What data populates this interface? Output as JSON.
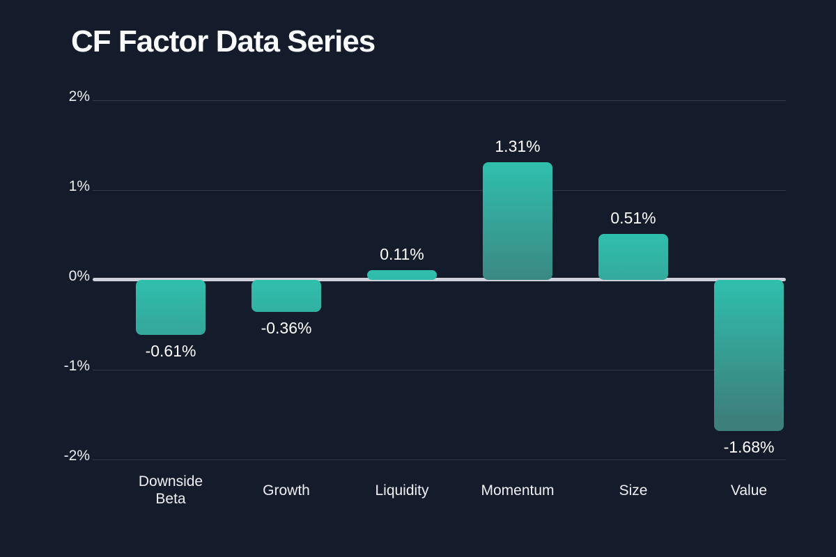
{
  "title": "CF Factor Data Series",
  "chart_data": {
    "type": "bar",
    "title": "CF Factor Data Series",
    "categories": [
      "Downside Beta",
      "Growth",
      "Liquidity",
      "Momentum",
      "Size",
      "Value"
    ],
    "values": [
      -0.61,
      -0.36,
      0.11,
      1.31,
      0.51,
      -1.68
    ],
    "value_labels": [
      "-0.61%",
      "-0.36%",
      "0.11%",
      "1.31%",
      "0.51%",
      "-1.68%"
    ],
    "xlabel": "",
    "ylabel": "",
    "ylim": [
      -2,
      2
    ],
    "y_ticks": [
      {
        "value": 2,
        "label": "2%"
      },
      {
        "value": 1,
        "label": "1%"
      },
      {
        "value": 0,
        "label": "0%"
      },
      {
        "value": -1,
        "label": "-1%"
      },
      {
        "value": -2,
        "label": "-2%"
      }
    ],
    "grid": true,
    "legend_position": "none"
  },
  "colors": {
    "background": "#141b2a",
    "bar_gradient_top": "#2fbfad",
    "bar_gradient_bottom": "#3d7f7b",
    "zero_axis_line": "#cfd0da",
    "gridline": "#333b4a",
    "title_text": "#fafbfd",
    "label_text": "#ffffff"
  }
}
